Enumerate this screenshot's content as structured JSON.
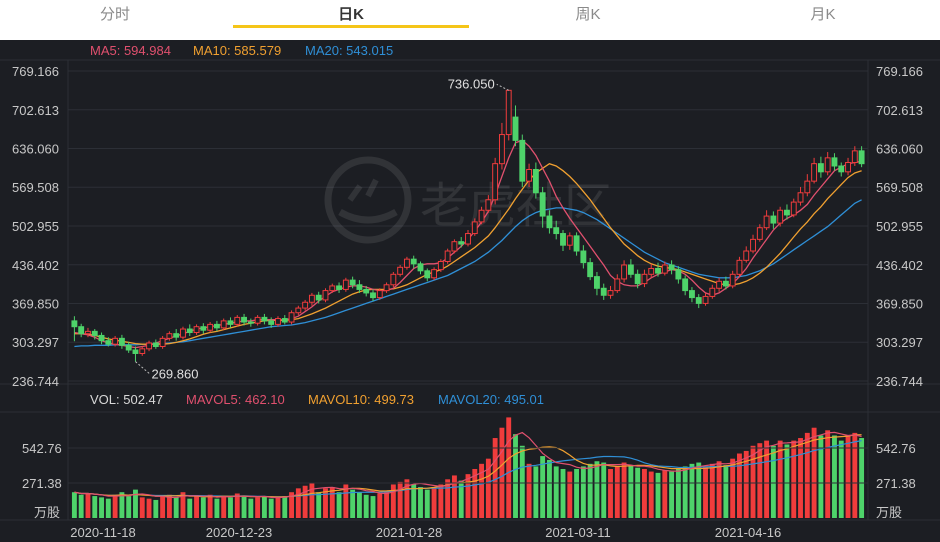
{
  "tabs": [
    {
      "label": "分时",
      "active": false
    },
    {
      "label": "日K",
      "active": true
    },
    {
      "label": "周K",
      "active": false
    },
    {
      "label": "月K",
      "active": false
    }
  ],
  "ma": {
    "ma5": "MA5: 594.984",
    "ma10": "MA10: 585.579",
    "ma20": "MA20: 543.015"
  },
  "vol": {
    "vol": "VOL: 502.47",
    "mavol5": "MAVOL5: 462.10",
    "mavol10": "MAVOL10: 499.73",
    "mavol20": "MAVOL20: 495.01"
  },
  "colors": {
    "up": "#f03c3c",
    "down": "#4ed36a",
    "ma5": "#e0506e",
    "ma10": "#f0a030",
    "ma20": "#2f8fd6",
    "accent": "#f5c518"
  },
  "price_axis": {
    "ticks": [
      "769.166",
      "702.613",
      "636.060",
      "569.508",
      "502.955",
      "436.402",
      "369.850",
      "303.297",
      "236.744"
    ]
  },
  "volume_axis": {
    "ticks": [
      "542.76",
      "271.38"
    ],
    "unit": "万股"
  },
  "annotations": {
    "high": "736.050",
    "low": "269.860"
  },
  "watermark": "老虎社区",
  "dates": [
    "2020-11-18",
    "2020-12-23",
    "2021-01-28",
    "2021-03-11",
    "2021-04-16"
  ],
  "chart_data": {
    "type": "candlestick",
    "price_range": [
      236.744,
      769.166
    ],
    "volume_range_max": 814.14,
    "candles": [
      [
        340,
        330,
        348,
        305,
        200
      ],
      [
        330,
        318,
        335,
        312,
        180
      ],
      [
        318,
        322,
        328,
        312,
        190
      ],
      [
        322,
        315,
        326,
        308,
        170
      ],
      [
        315,
        306,
        320,
        300,
        160
      ],
      [
        306,
        300,
        312,
        296,
        150
      ],
      [
        300,
        310,
        314,
        296,
        180
      ],
      [
        310,
        298,
        316,
        292,
        200
      ],
      [
        298,
        290,
        304,
        285,
        170
      ],
      [
        290,
        284,
        296,
        270,
        220
      ],
      [
        284,
        292,
        296,
        280,
        160
      ],
      [
        292,
        302,
        306,
        288,
        150
      ],
      [
        302,
        296,
        308,
        292,
        140
      ],
      [
        296,
        310,
        314,
        292,
        170
      ],
      [
        310,
        318,
        322,
        306,
        180
      ],
      [
        318,
        312,
        326,
        306,
        160
      ],
      [
        312,
        326,
        330,
        308,
        200
      ],
      [
        326,
        320,
        334,
        314,
        150
      ],
      [
        320,
        330,
        334,
        316,
        170
      ],
      [
        330,
        324,
        336,
        318,
        160
      ],
      [
        324,
        334,
        338,
        320,
        180
      ],
      [
        334,
        328,
        340,
        322,
        150
      ],
      [
        328,
        340,
        344,
        324,
        170
      ],
      [
        340,
        334,
        346,
        328,
        160
      ],
      [
        334,
        346,
        350,
        330,
        190
      ],
      [
        346,
        338,
        352,
        332,
        170
      ],
      [
        338,
        336,
        344,
        330,
        150
      ],
      [
        336,
        346,
        350,
        332,
        160
      ],
      [
        346,
        340,
        352,
        334,
        170
      ],
      [
        340,
        334,
        346,
        328,
        150
      ],
      [
        334,
        344,
        348,
        330,
        160
      ],
      [
        344,
        338,
        350,
        334,
        170
      ],
      [
        338,
        354,
        358,
        334,
        200
      ],
      [
        354,
        362,
        366,
        350,
        230
      ],
      [
        362,
        372,
        376,
        358,
        250
      ],
      [
        372,
        384,
        388,
        366,
        270
      ],
      [
        384,
        376,
        390,
        370,
        200
      ],
      [
        376,
        392,
        396,
        372,
        230
      ],
      [
        392,
        400,
        404,
        388,
        240
      ],
      [
        400,
        394,
        406,
        388,
        200
      ],
      [
        394,
        410,
        414,
        390,
        260
      ],
      [
        410,
        402,
        416,
        396,
        220
      ],
      [
        402,
        394,
        410,
        388,
        200
      ],
      [
        394,
        388,
        400,
        382,
        180
      ],
      [
        388,
        380,
        394,
        374,
        170
      ],
      [
        380,
        392,
        396,
        376,
        190
      ],
      [
        392,
        402,
        406,
        388,
        210
      ],
      [
        402,
        420,
        424,
        398,
        260
      ],
      [
        420,
        432,
        436,
        416,
        280
      ],
      [
        432,
        446,
        450,
        428,
        300
      ],
      [
        446,
        438,
        452,
        430,
        260
      ],
      [
        438,
        426,
        442,
        420,
        240
      ],
      [
        426,
        414,
        430,
        408,
        220
      ],
      [
        414,
        428,
        432,
        410,
        240
      ],
      [
        428,
        442,
        446,
        424,
        260
      ],
      [
        442,
        460,
        464,
        438,
        300
      ],
      [
        460,
        476,
        480,
        456,
        330
      ],
      [
        476,
        472,
        484,
        466,
        290
      ],
      [
        472,
        490,
        496,
        468,
        340
      ],
      [
        490,
        510,
        516,
        486,
        380
      ],
      [
        510,
        530,
        536,
        506,
        420
      ],
      [
        530,
        548,
        556,
        526,
        460
      ],
      [
        548,
        610,
        620,
        540,
        620
      ],
      [
        610,
        660,
        680,
        600,
        700
      ],
      [
        660,
        736,
        736,
        650,
        780
      ],
      [
        690,
        650,
        710,
        640,
        650
      ],
      [
        650,
        580,
        660,
        570,
        560
      ],
      [
        580,
        600,
        610,
        570,
        420
      ],
      [
        600,
        560,
        612,
        550,
        400
      ],
      [
        560,
        520,
        570,
        500,
        480
      ],
      [
        520,
        500,
        530,
        490,
        450
      ],
      [
        500,
        490,
        512,
        480,
        400
      ],
      [
        490,
        470,
        496,
        460,
        380
      ],
      [
        470,
        486,
        492,
        462,
        360
      ],
      [
        486,
        460,
        492,
        452,
        380
      ],
      [
        460,
        440,
        470,
        430,
        400
      ],
      [
        440,
        416,
        448,
        410,
        420
      ],
      [
        416,
        396,
        424,
        384,
        440
      ],
      [
        396,
        384,
        404,
        376,
        430
      ],
      [
        384,
        392,
        400,
        378,
        380
      ],
      [
        392,
        412,
        420,
        388,
        400
      ],
      [
        412,
        436,
        444,
        406,
        430
      ],
      [
        436,
        420,
        446,
        414,
        410
      ],
      [
        420,
        404,
        428,
        396,
        390
      ],
      [
        404,
        420,
        428,
        398,
        380
      ],
      [
        420,
        430,
        438,
        414,
        360
      ],
      [
        430,
        422,
        440,
        416,
        350
      ],
      [
        422,
        436,
        442,
        418,
        370
      ],
      [
        436,
        428,
        444,
        420,
        360
      ],
      [
        428,
        412,
        434,
        404,
        380
      ],
      [
        412,
        392,
        418,
        384,
        400
      ],
      [
        392,
        380,
        398,
        372,
        420
      ],
      [
        380,
        370,
        386,
        362,
        430
      ],
      [
        370,
        382,
        388,
        366,
        400
      ],
      [
        382,
        396,
        402,
        378,
        420
      ],
      [
        396,
        408,
        414,
        390,
        440
      ],
      [
        408,
        400,
        416,
        394,
        410
      ],
      [
        400,
        420,
        426,
        396,
        460
      ],
      [
        420,
        444,
        450,
        416,
        500
      ],
      [
        444,
        460,
        468,
        440,
        520
      ],
      [
        460,
        480,
        488,
        456,
        560
      ],
      [
        480,
        500,
        506,
        476,
        580
      ],
      [
        500,
        520,
        530,
        496,
        600
      ],
      [
        520,
        508,
        528,
        498,
        560
      ],
      [
        508,
        530,
        536,
        502,
        600
      ],
      [
        530,
        522,
        540,
        514,
        570
      ],
      [
        522,
        544,
        550,
        518,
        600
      ],
      [
        544,
        560,
        570,
        538,
        620
      ],
      [
        560,
        580,
        592,
        554,
        660
      ],
      [
        580,
        610,
        620,
        576,
        700
      ],
      [
        610,
        596,
        622,
        586,
        640
      ],
      [
        596,
        620,
        630,
        590,
        680
      ],
      [
        620,
        606,
        628,
        598,
        640
      ],
      [
        606,
        596,
        612,
        588,
        600
      ],
      [
        596,
        612,
        620,
        590,
        640
      ],
      [
        612,
        632,
        640,
        606,
        660
      ],
      [
        632,
        610,
        640,
        604,
        620
      ]
    ],
    "ma5": [
      320,
      318,
      316,
      312,
      306,
      302,
      300,
      298,
      296,
      294,
      296,
      298,
      302,
      306,
      310,
      314,
      318,
      322,
      326,
      328,
      330,
      332,
      334,
      336,
      338,
      340,
      340,
      342,
      342,
      342,
      342,
      342,
      344,
      348,
      356,
      364,
      374,
      382,
      390,
      394,
      398,
      400,
      400,
      398,
      394,
      392,
      392,
      396,
      406,
      418,
      430,
      436,
      438,
      438,
      440,
      448,
      458,
      468,
      480,
      494,
      510,
      528,
      556,
      588,
      620,
      646,
      650,
      640,
      624,
      602,
      580,
      554,
      534,
      516,
      500,
      484,
      468,
      452,
      436,
      418,
      408,
      402,
      400,
      400,
      406,
      414,
      420,
      424,
      428,
      426,
      420,
      410,
      398,
      388,
      384,
      388,
      396,
      404,
      416,
      430,
      448,
      464,
      480,
      496,
      508,
      516,
      522,
      530,
      540,
      556,
      570,
      584,
      598,
      604,
      610,
      612,
      614
    ],
    "ma10": [
      318,
      318,
      317,
      315,
      312,
      309,
      307,
      305,
      303,
      301,
      300,
      300,
      300,
      300,
      301,
      303,
      306,
      309,
      313,
      317,
      320,
      322,
      325,
      328,
      331,
      334,
      336,
      338,
      340,
      341,
      341,
      341,
      342,
      344,
      348,
      352,
      357,
      362,
      368,
      374,
      380,
      386,
      390,
      393,
      394,
      394,
      394,
      395,
      398,
      402,
      408,
      414,
      420,
      424,
      428,
      434,
      442,
      450,
      458,
      466,
      476,
      486,
      500,
      516,
      532,
      550,
      566,
      582,
      594,
      602,
      610,
      606,
      598,
      588,
      576,
      562,
      548,
      532,
      516,
      500,
      486,
      472,
      462,
      452,
      444,
      438,
      434,
      432,
      430,
      428,
      424,
      420,
      416,
      412,
      408,
      404,
      402,
      402,
      404,
      408,
      414,
      422,
      432,
      444,
      456,
      470,
      484,
      498,
      510,
      524,
      536,
      550,
      562,
      574,
      586,
      594,
      598
    ],
    "ma20": [
      296,
      297,
      297,
      298,
      298,
      298,
      299,
      299,
      299,
      299,
      300,
      300,
      301,
      301,
      302,
      303,
      304,
      306,
      308,
      310,
      312,
      314,
      316,
      318,
      320,
      322,
      324,
      326,
      328,
      330,
      331,
      332,
      333,
      335,
      337,
      340,
      343,
      346,
      350,
      354,
      358,
      362,
      366,
      370,
      374,
      378,
      382,
      386,
      390,
      394,
      398,
      402,
      406,
      410,
      414,
      418,
      424,
      430,
      436,
      442,
      450,
      458,
      468,
      478,
      490,
      502,
      512,
      520,
      526,
      530,
      532,
      534,
      534,
      532,
      530,
      526,
      520,
      514,
      506,
      498,
      490,
      482,
      474,
      466,
      458,
      452,
      446,
      440,
      436,
      432,
      428,
      424,
      420,
      418,
      416,
      414,
      414,
      414,
      416,
      418,
      422,
      426,
      432,
      438,
      446,
      454,
      462,
      470,
      478,
      486,
      494,
      502,
      512,
      522,
      532,
      542,
      548
    ]
  }
}
